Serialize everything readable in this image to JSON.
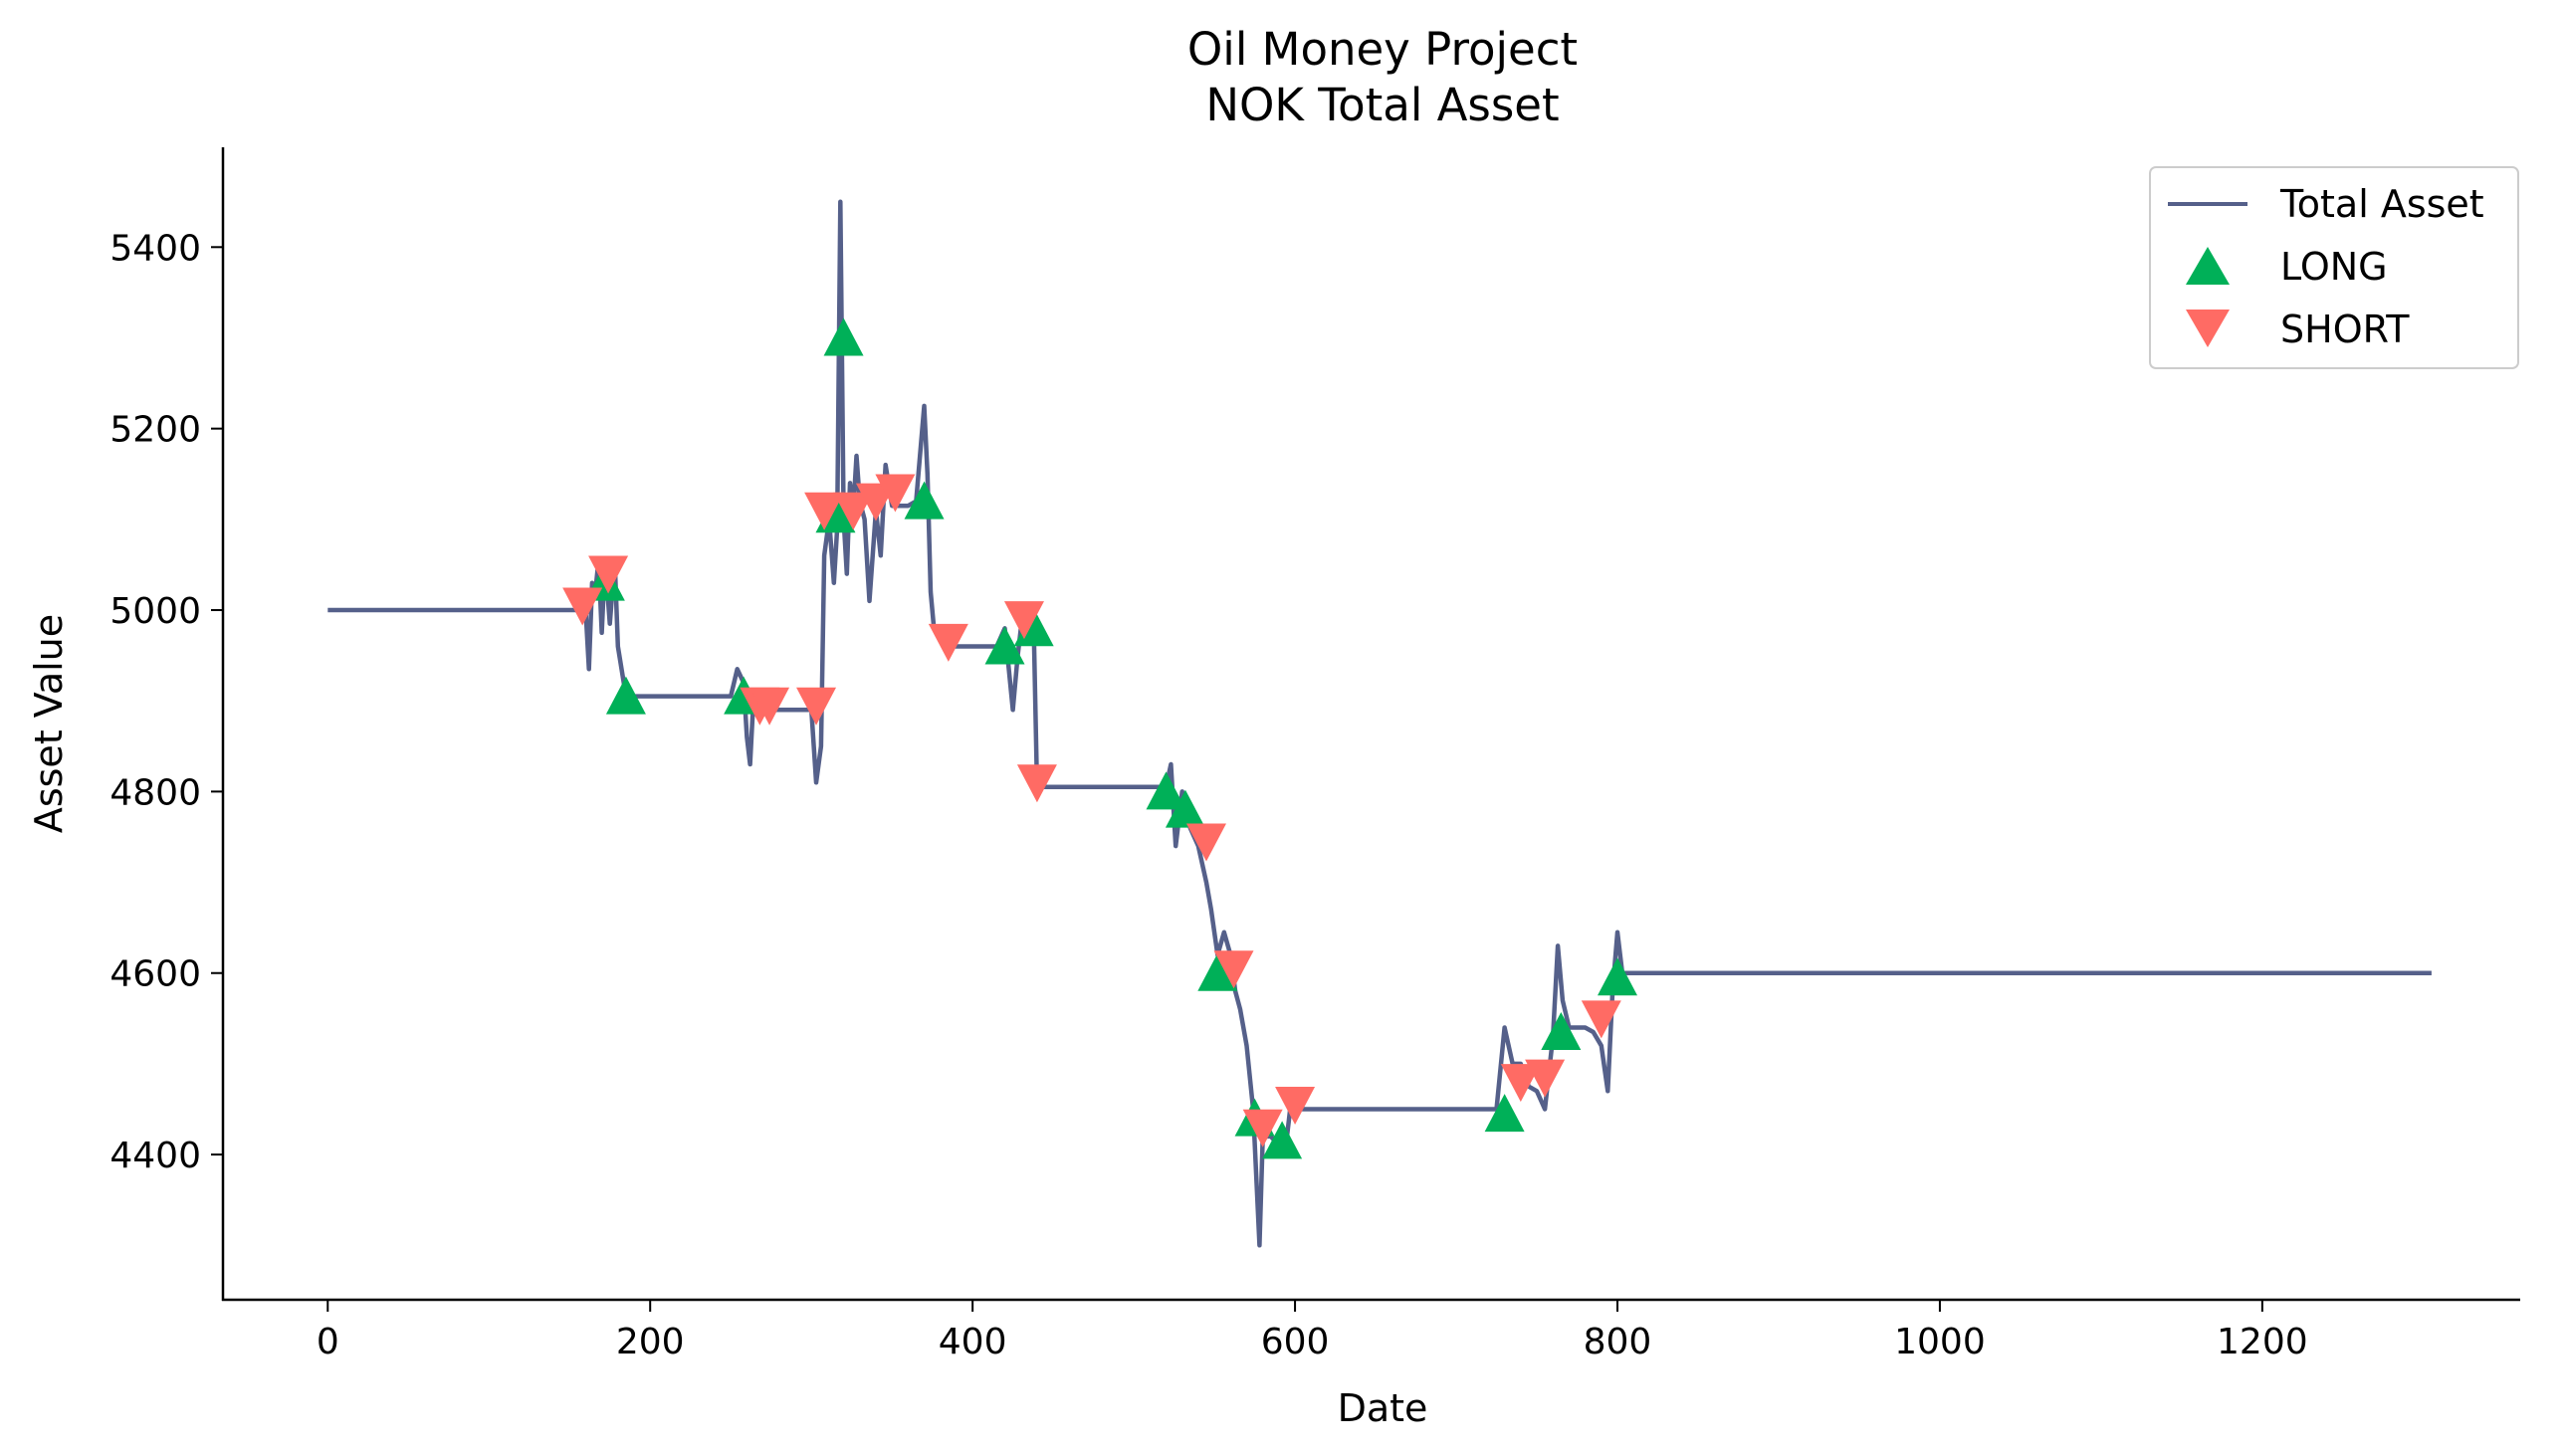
{
  "chart_data": {
    "type": "line",
    "title": "Oil Money Project",
    "subtitle": "NOK Total Asset",
    "xlabel": "Date",
    "ylabel": "Asset Value",
    "xlim": [
      -65,
      1360
    ],
    "ylim": [
      4240,
      5510
    ],
    "xticks": [
      0,
      200,
      400,
      600,
      800,
      1000,
      1200
    ],
    "yticks": [
      4400,
      4600,
      4800,
      5000,
      5200,
      5400
    ],
    "grid": false,
    "legend_position": "top-right",
    "colors": {
      "line": "#55608a",
      "long": "#00b058",
      "short": "#ff6b64"
    },
    "series": [
      {
        "name": "Total Asset",
        "x": [
          0,
          160,
          162,
          164,
          166,
          168,
          170,
          172,
          175,
          178,
          180,
          185,
          250,
          254,
          258,
          260,
          262,
          264,
          266,
          270,
          290,
          300,
          303,
          306,
          308,
          311,
          314,
          316,
          318,
          320,
          322,
          324,
          326,
          328,
          330,
          333,
          336,
          340,
          343,
          346,
          350,
          355,
          360,
          365,
          370,
          372,
          374,
          376,
          378,
          382,
          385,
          400,
          415,
          420,
          425,
          428,
          430,
          432,
          435,
          438,
          440,
          443,
          445,
          520,
          523,
          526,
          530,
          535,
          540,
          545,
          548,
          552,
          556,
          560,
          563,
          566,
          570,
          574,
          578,
          580,
          582,
          585,
          590,
          595,
          597,
          600,
          720,
          725,
          730,
          735,
          740,
          745,
          750,
          755,
          760,
          763,
          766,
          770,
          775,
          780,
          785,
          790,
          794,
          797,
          800,
          803,
          806,
          1305
        ],
        "y": [
          5000,
          5000,
          4935,
          5030,
          5020,
          5055,
          4975,
          5055,
          4985,
          5055,
          4960,
          4905,
          4905,
          4935,
          4920,
          4860,
          4830,
          4900,
          4885,
          4890,
          4890,
          4890,
          4810,
          4850,
          5060,
          5100,
          5030,
          5090,
          5450,
          5100,
          5040,
          5140,
          5110,
          5170,
          5120,
          5100,
          5010,
          5110,
          5060,
          5160,
          5115,
          5115,
          5115,
          5120,
          5225,
          5150,
          5020,
          4980,
          4980,
          4960,
          4960,
          4960,
          4960,
          4980,
          4890,
          4950,
          4980,
          4990,
          4975,
          4975,
          4805,
          4805,
          4805,
          4805,
          4830,
          4740,
          4800,
          4760,
          4740,
          4700,
          4670,
          4620,
          4645,
          4620,
          4580,
          4560,
          4520,
          4450,
          4300,
          4420,
          4420,
          4420,
          4410,
          4420,
          4450,
          4450,
          4450,
          4450,
          4540,
          4500,
          4500,
          4475,
          4470,
          4450,
          4530,
          4630,
          4570,
          4540,
          4540,
          4540,
          4535,
          4520,
          4470,
          4580,
          4645,
          4600,
          4600,
          4600
        ]
      },
      {
        "name": "LONG",
        "marker": "triangle-up",
        "x": [
          172,
          185,
          258,
          315,
          320,
          370,
          420,
          438,
          520,
          532,
          552,
          575,
          592,
          730,
          765,
          800
        ],
        "y": [
          5030,
          4905,
          4905,
          5105,
          5300,
          5120,
          4960,
          4980,
          4800,
          4780,
          4600,
          4440,
          4415,
          4445,
          4535,
          4595
        ]
      },
      {
        "name": "SHORT",
        "marker": "triangle-down",
        "x": [
          158,
          174,
          268,
          274,
          303,
          308,
          326,
          340,
          352,
          385,
          432,
          440,
          545,
          562,
          580,
          600,
          740,
          755,
          790
        ],
        "y": [
          5005,
          5040,
          4895,
          4895,
          4895,
          5110,
          5110,
          5120,
          5130,
          4965,
          4990,
          4810,
          4745,
          4605,
          4430,
          4455,
          4480,
          4485,
          4550
        ]
      }
    ]
  }
}
